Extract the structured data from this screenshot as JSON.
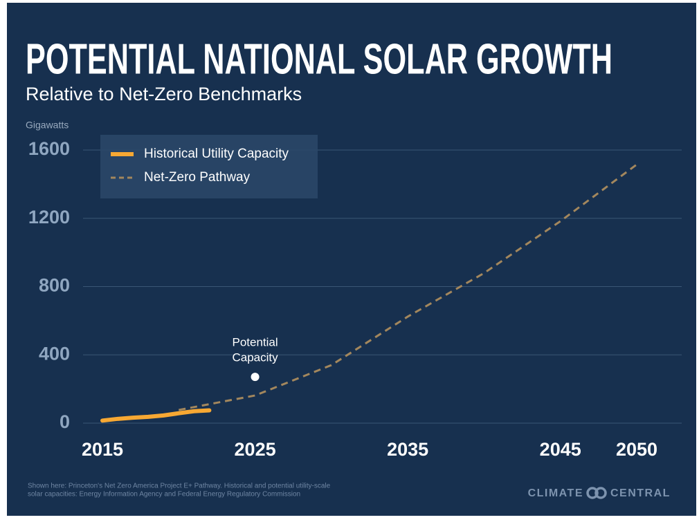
{
  "chart_data": {
    "type": "line",
    "title": "POTENTIAL NATIONAL SOLAR GROWTH",
    "subtitle": "Relative to Net-Zero Benchmarks",
    "y_label": "Gigawatts",
    "xlim": [
      2015,
      2050
    ],
    "xticks": [
      2015,
      2025,
      2035,
      2045,
      2050
    ],
    "ylim": [
      0,
      1600
    ],
    "yticks": [
      0,
      400,
      800,
      1200,
      1600
    ],
    "grid": true,
    "legend": "top-left",
    "series": [
      {
        "name": "Historical Utility Capacity",
        "color": "#f7a833",
        "style": "solid",
        "x": [
          2015,
          2016,
          2017,
          2018,
          2019,
          2020,
          2021,
          2022
        ],
        "values": [
          15,
          25,
          32,
          37,
          45,
          58,
          70,
          75
        ]
      },
      {
        "name": "Net-Zero Pathway",
        "color": "#a3875d",
        "style": "dashed",
        "x": [
          2020,
          2025,
          2030,
          2035,
          2040,
          2045,
          2050
        ],
        "values": [
          77,
          162,
          340,
          624,
          879,
          1183,
          1515
        ]
      }
    ],
    "annotation": {
      "text": [
        "Potential",
        "Capacity"
      ],
      "x": 2025,
      "y": 271
    },
    "source": [
      "Shown here: Princeton's Net Zero America Project E+ Pathway. Historical and potential utility-scale",
      "solar capacities: Energy Information Agency and Federal Energy Regulatory Commission"
    ],
    "brand": [
      "CLIMATE",
      "CENTRAL"
    ]
  }
}
